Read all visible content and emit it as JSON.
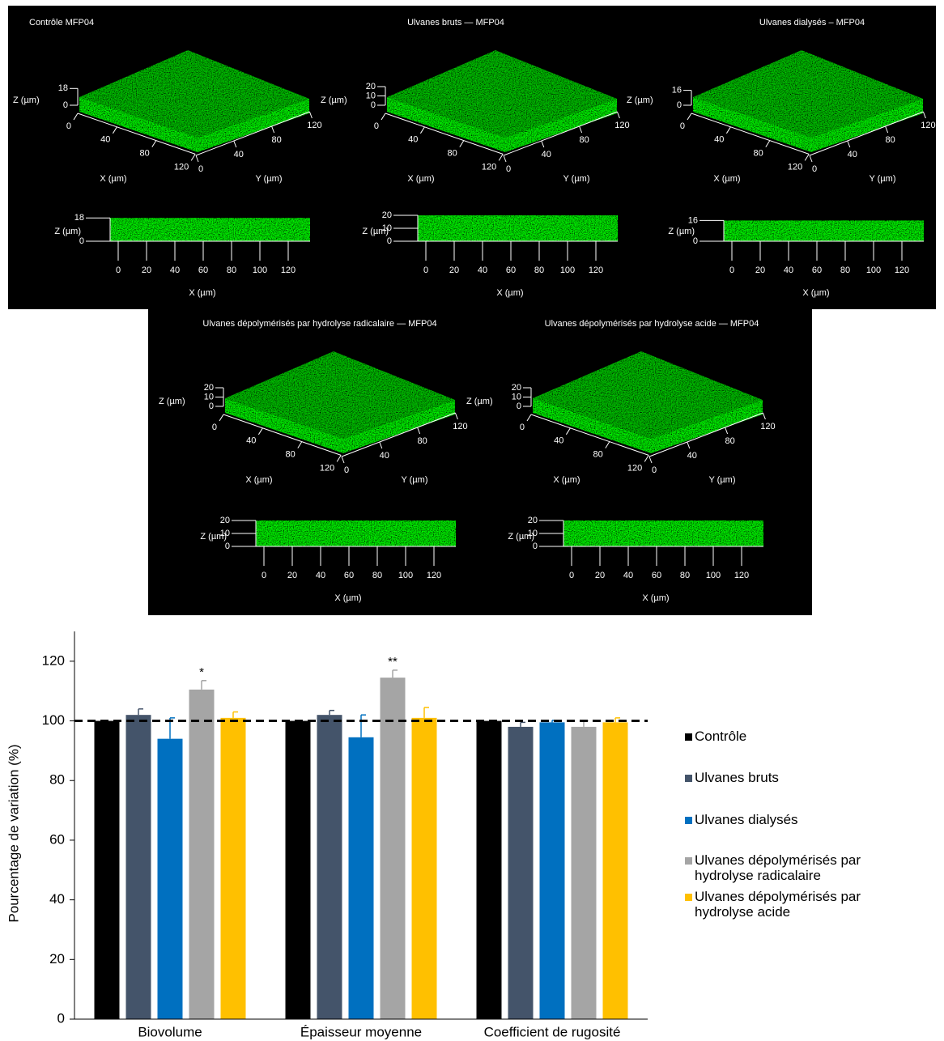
{
  "panels": [
    {
      "title": "Contrôle MFP04",
      "z_ticks": [
        0,
        18
      ]
    },
    {
      "title": "Ulvanes bruts — MFP04",
      "z_ticks": [
        0,
        10,
        20
      ]
    },
    {
      "title": "Ulvanes dialysés – MFP04",
      "z_ticks": [
        0,
        16
      ]
    },
    {
      "title": "Ulvanes dépolymérisés par hydrolyse radicalaire — MFP04",
      "z_ticks": [
        0,
        10,
        20
      ]
    },
    {
      "title": "Ulvanes dépolymérisés par hydrolyse acide — MFP04",
      "z_ticks": [
        0,
        10,
        20
      ]
    }
  ],
  "axis_ticks_3d": [
    0,
    40,
    80,
    120
  ],
  "axis_ticks_2d": [
    0,
    20,
    40,
    60,
    80,
    100,
    120
  ],
  "axis_labels": {
    "x": "X (µm)",
    "y": "Y (µm)",
    "z": "Z (µm)"
  },
  "chart_data": {
    "type": "bar",
    "y_label": "Pourcentage de variation (%)",
    "categories": [
      "Biovolume",
      "Épaisseur moyenne",
      "Coefficient de rugosité"
    ],
    "series": [
      {
        "name": "Contrôle",
        "color": "#000000",
        "values": [
          100,
          100,
          100
        ]
      },
      {
        "name": "Ulvanes bruts",
        "color": "#44546a",
        "values": [
          102,
          102,
          98
        ],
        "errors": [
          2,
          1.5,
          1.5
        ]
      },
      {
        "name": "Ulvanes dialysés",
        "color": "#0070c0",
        "values": [
          94,
          94.5,
          99.5
        ],
        "errors": [
          7,
          7.5,
          0.7
        ]
      },
      {
        "name": "Ulvanes dépolymérisés par hydrolyse radicalaire",
        "color": "#a5a5a5",
        "values": [
          110.5,
          114.5,
          98
        ],
        "errors": [
          3,
          2.5,
          2
        ],
        "significance": [
          "*",
          "**",
          null
        ]
      },
      {
        "name": "Ulvanes dépolymérisés par hydrolyse acide",
        "color": "#ffc000",
        "values": [
          101,
          101,
          99.5
        ],
        "errors": [
          2,
          3.5,
          1.5
        ]
      }
    ],
    "reference_line": 100,
    "ylim": [
      0,
      130
    ],
    "yticks": [
      0,
      20,
      40,
      60,
      80,
      100,
      120
    ]
  }
}
